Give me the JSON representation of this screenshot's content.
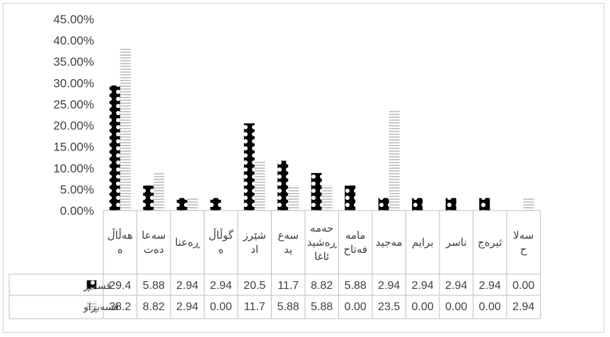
{
  "chart_data": {
    "type": "bar",
    "title": "",
    "xlabel": "",
    "ylabel": "",
    "ylim": [
      0,
      45
    ],
    "y_ticks": [
      "0.00%",
      "5.00%",
      "10.00%",
      "15.00%",
      "20.00%",
      "25.00%",
      "30.00%",
      "35.00%",
      "40.00%",
      "45.00%"
    ],
    "grid": false,
    "legend": "in data table",
    "categories": [
      [
        "هەڵاڵ",
        "ە"
      ],
      [
        "سەعا",
        "دەت"
      ],
      [
        "ڕەعنا"
      ],
      [
        "گوڵاڵ",
        "ە"
      ],
      [
        "شێرز",
        "اد"
      ],
      [
        "سەع",
        "ید"
      ],
      [
        "حەمە",
        "ڕەشید",
        "ئاغا"
      ],
      [
        "مامە",
        "فەتاح"
      ],
      [
        "مەجید"
      ],
      [
        "برایم"
      ],
      [
        "ناسر"
      ],
      [
        "ئیرەج"
      ],
      [
        "سەلا",
        "ح"
      ]
    ],
    "series": [
      {
        "name": "قسەبڕ",
        "pattern": "dots",
        "color": "#000000",
        "values": [
          29.4,
          5.88,
          2.94,
          2.94,
          20.5,
          11.7,
          8.82,
          5.88,
          2.94,
          2.94,
          2.94,
          2.94,
          0.0
        ],
        "labels": [
          "29.4",
          "5.88",
          "2.94",
          "2.94",
          "20.5",
          "11.7",
          "8.82",
          "5.88",
          "2.94",
          "2.94",
          "2.94",
          "2.94",
          "0.00"
        ]
      },
      {
        "name": "قسەبڕاو",
        "pattern": "horizontal-stripes",
        "color": "#c8c8c8",
        "values": [
          38.2,
          8.82,
          2.94,
          0.0,
          11.7,
          5.88,
          5.88,
          0.0,
          23.5,
          0.0,
          0.0,
          0.0,
          2.94
        ],
        "labels": [
          "38.2",
          "8.82",
          "2.94",
          "0.00",
          "11.7",
          "5.88",
          "5.88",
          "0.00",
          "23.5",
          "0.00",
          "0.00",
          "0.00",
          "2.94"
        ]
      }
    ]
  }
}
